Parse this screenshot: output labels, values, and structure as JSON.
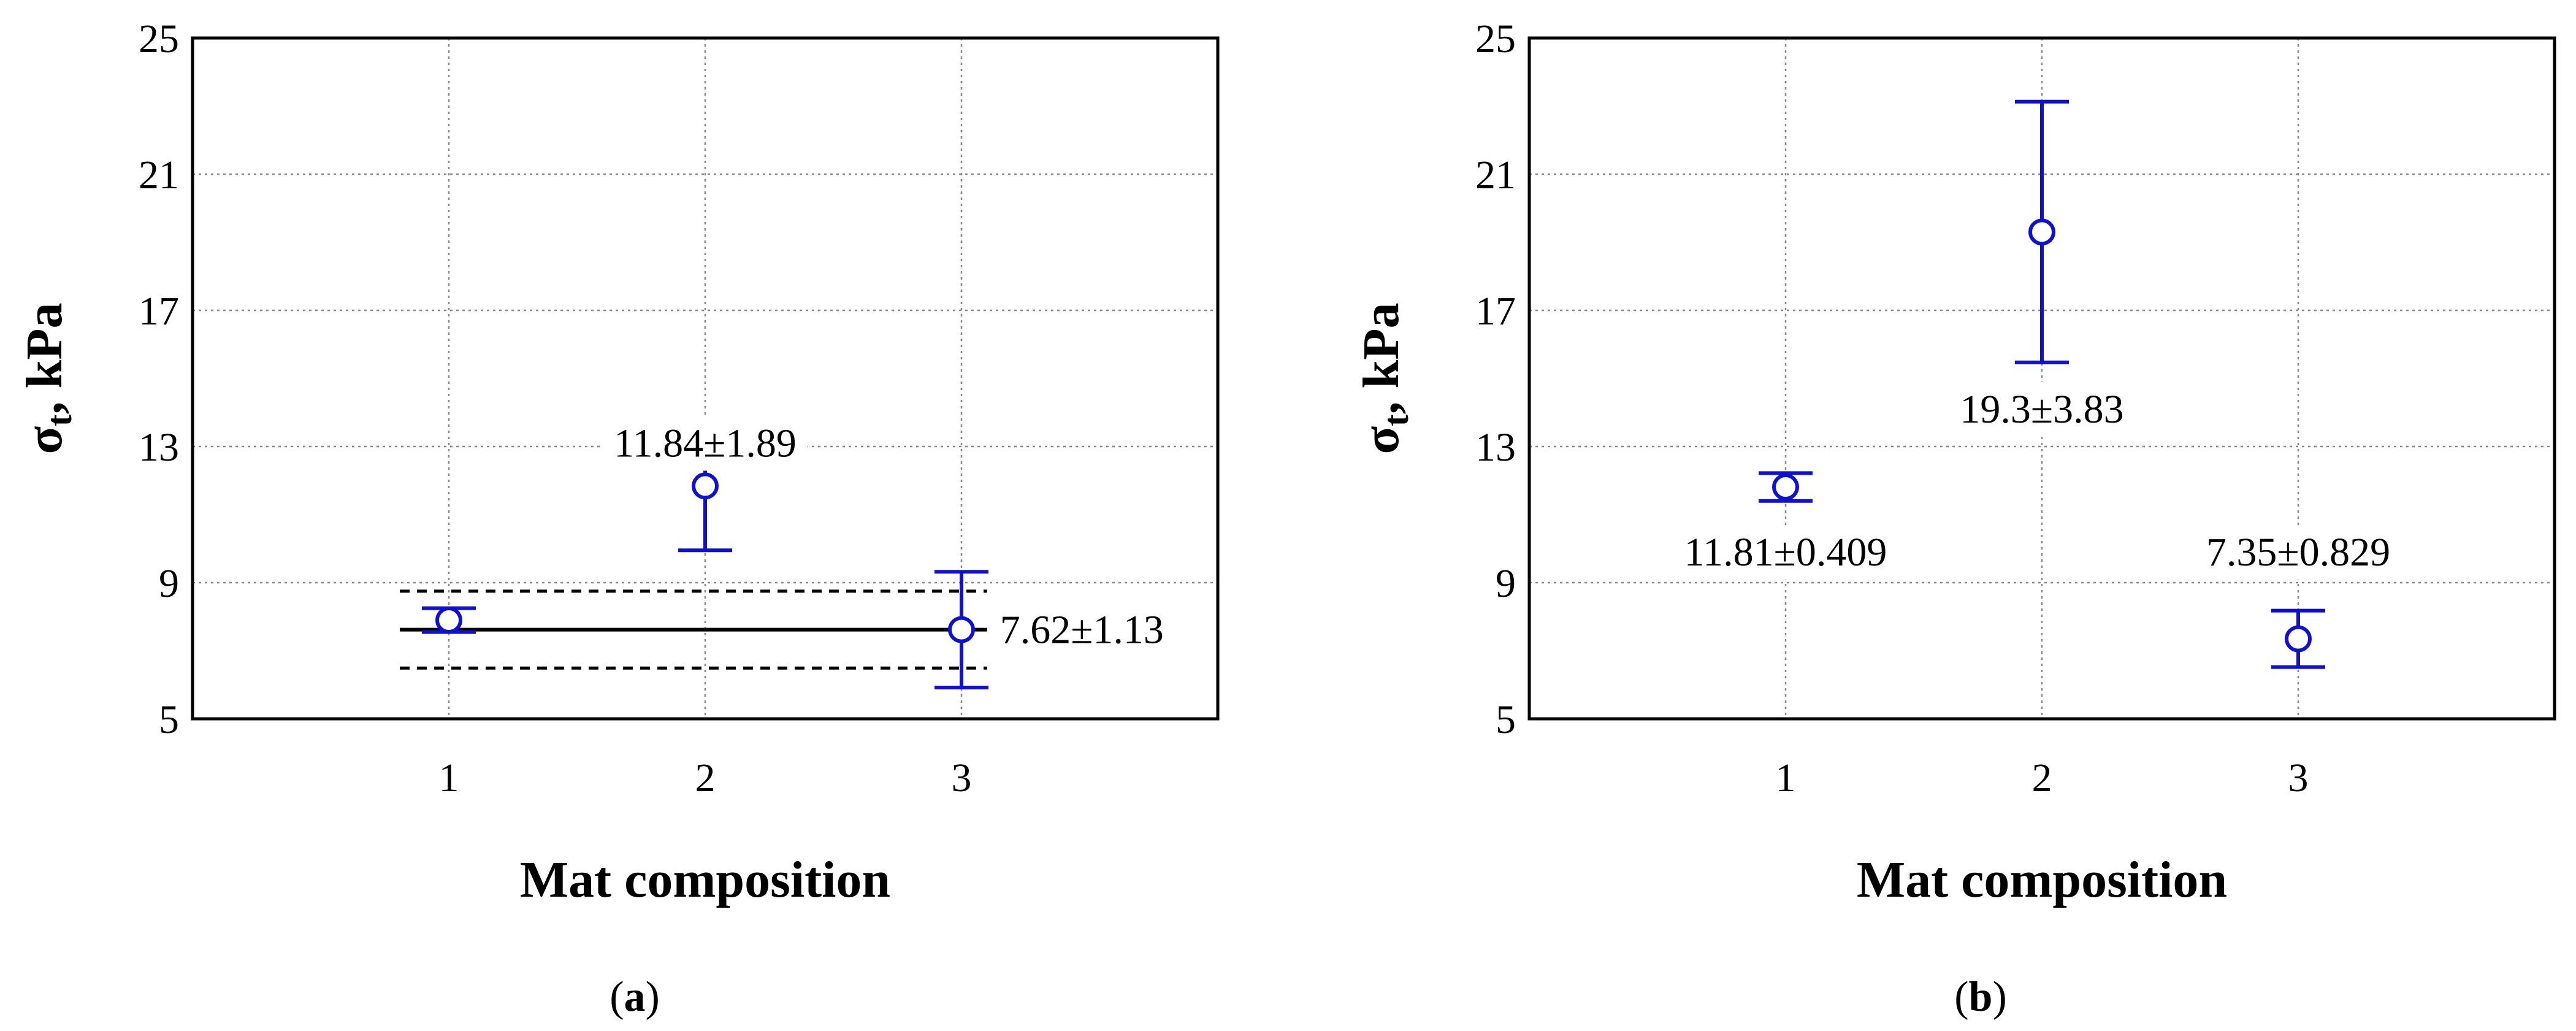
{
  "figure": {
    "panels": [
      {
        "id": "a",
        "label_open": "(",
        "label_letter": "a",
        "label_close": ")",
        "xlabel": "Mat composition",
        "ylabel_base": "σ",
        "ylabel_sub": "t",
        "ylabel_rest": ", kPa"
      },
      {
        "id": "b",
        "label_open": "(",
        "label_letter": "b",
        "label_close": ")",
        "xlabel": "Mat composition",
        "ylabel_base": "σ",
        "ylabel_sub": "t",
        "ylabel_rest": ", kPa"
      }
    ]
  },
  "colors": {
    "series": "#1010d0",
    "reference": "#000000",
    "grid": "#888888"
  },
  "chart_data": [
    {
      "type": "scatter",
      "panel": "a",
      "x_categories": [
        "1",
        "2",
        "3"
      ],
      "x": [
        1,
        2,
        3
      ],
      "xlim": [
        0,
        4
      ],
      "ylim": [
        5,
        25
      ],
      "yticks": [
        5,
        9,
        13,
        17,
        21,
        25
      ],
      "grid": true,
      "series": [
        {
          "x": [
            1,
            2,
            3
          ],
          "y": [
            7.9,
            11.84,
            7.62
          ],
          "y_err": [
            0.35,
            1.89,
            1.7
          ],
          "marker": "open-circle"
        }
      ],
      "reference_line": {
        "x_range": [
          1,
          3.1
        ],
        "mean": 7.62,
        "band": [
          6.49,
          8.75
        ]
      },
      "annotations": [
        {
          "text": "11.84±1.89",
          "x": 2,
          "y": 13.1,
          "anchor": "middle"
        },
        {
          "text": "7.62±1.13",
          "x": 3.15,
          "y": 7.62,
          "anchor": "start"
        }
      ]
    },
    {
      "type": "scatter",
      "panel": "b",
      "x_categories": [
        "1",
        "2",
        "3"
      ],
      "x": [
        1,
        2,
        3
      ],
      "xlim": [
        0,
        4
      ],
      "ylim": [
        5,
        25
      ],
      "yticks": [
        5,
        9,
        13,
        17,
        21,
        25
      ],
      "grid": true,
      "series": [
        {
          "x": [
            1,
            2,
            3
          ],
          "y": [
            11.81,
            19.3,
            7.35
          ],
          "y_err": [
            0.409,
            3.83,
            0.829
          ],
          "marker": "open-circle"
        }
      ],
      "annotations": [
        {
          "text": "11.81±0.409",
          "x": 1,
          "y": 9.9,
          "anchor": "middle"
        },
        {
          "text": "19.3±3.83",
          "x": 2,
          "y": 14.1,
          "anchor": "middle"
        },
        {
          "text": "7.35±0.829",
          "x": 3,
          "y": 9.9,
          "anchor": "middle"
        }
      ]
    }
  ]
}
